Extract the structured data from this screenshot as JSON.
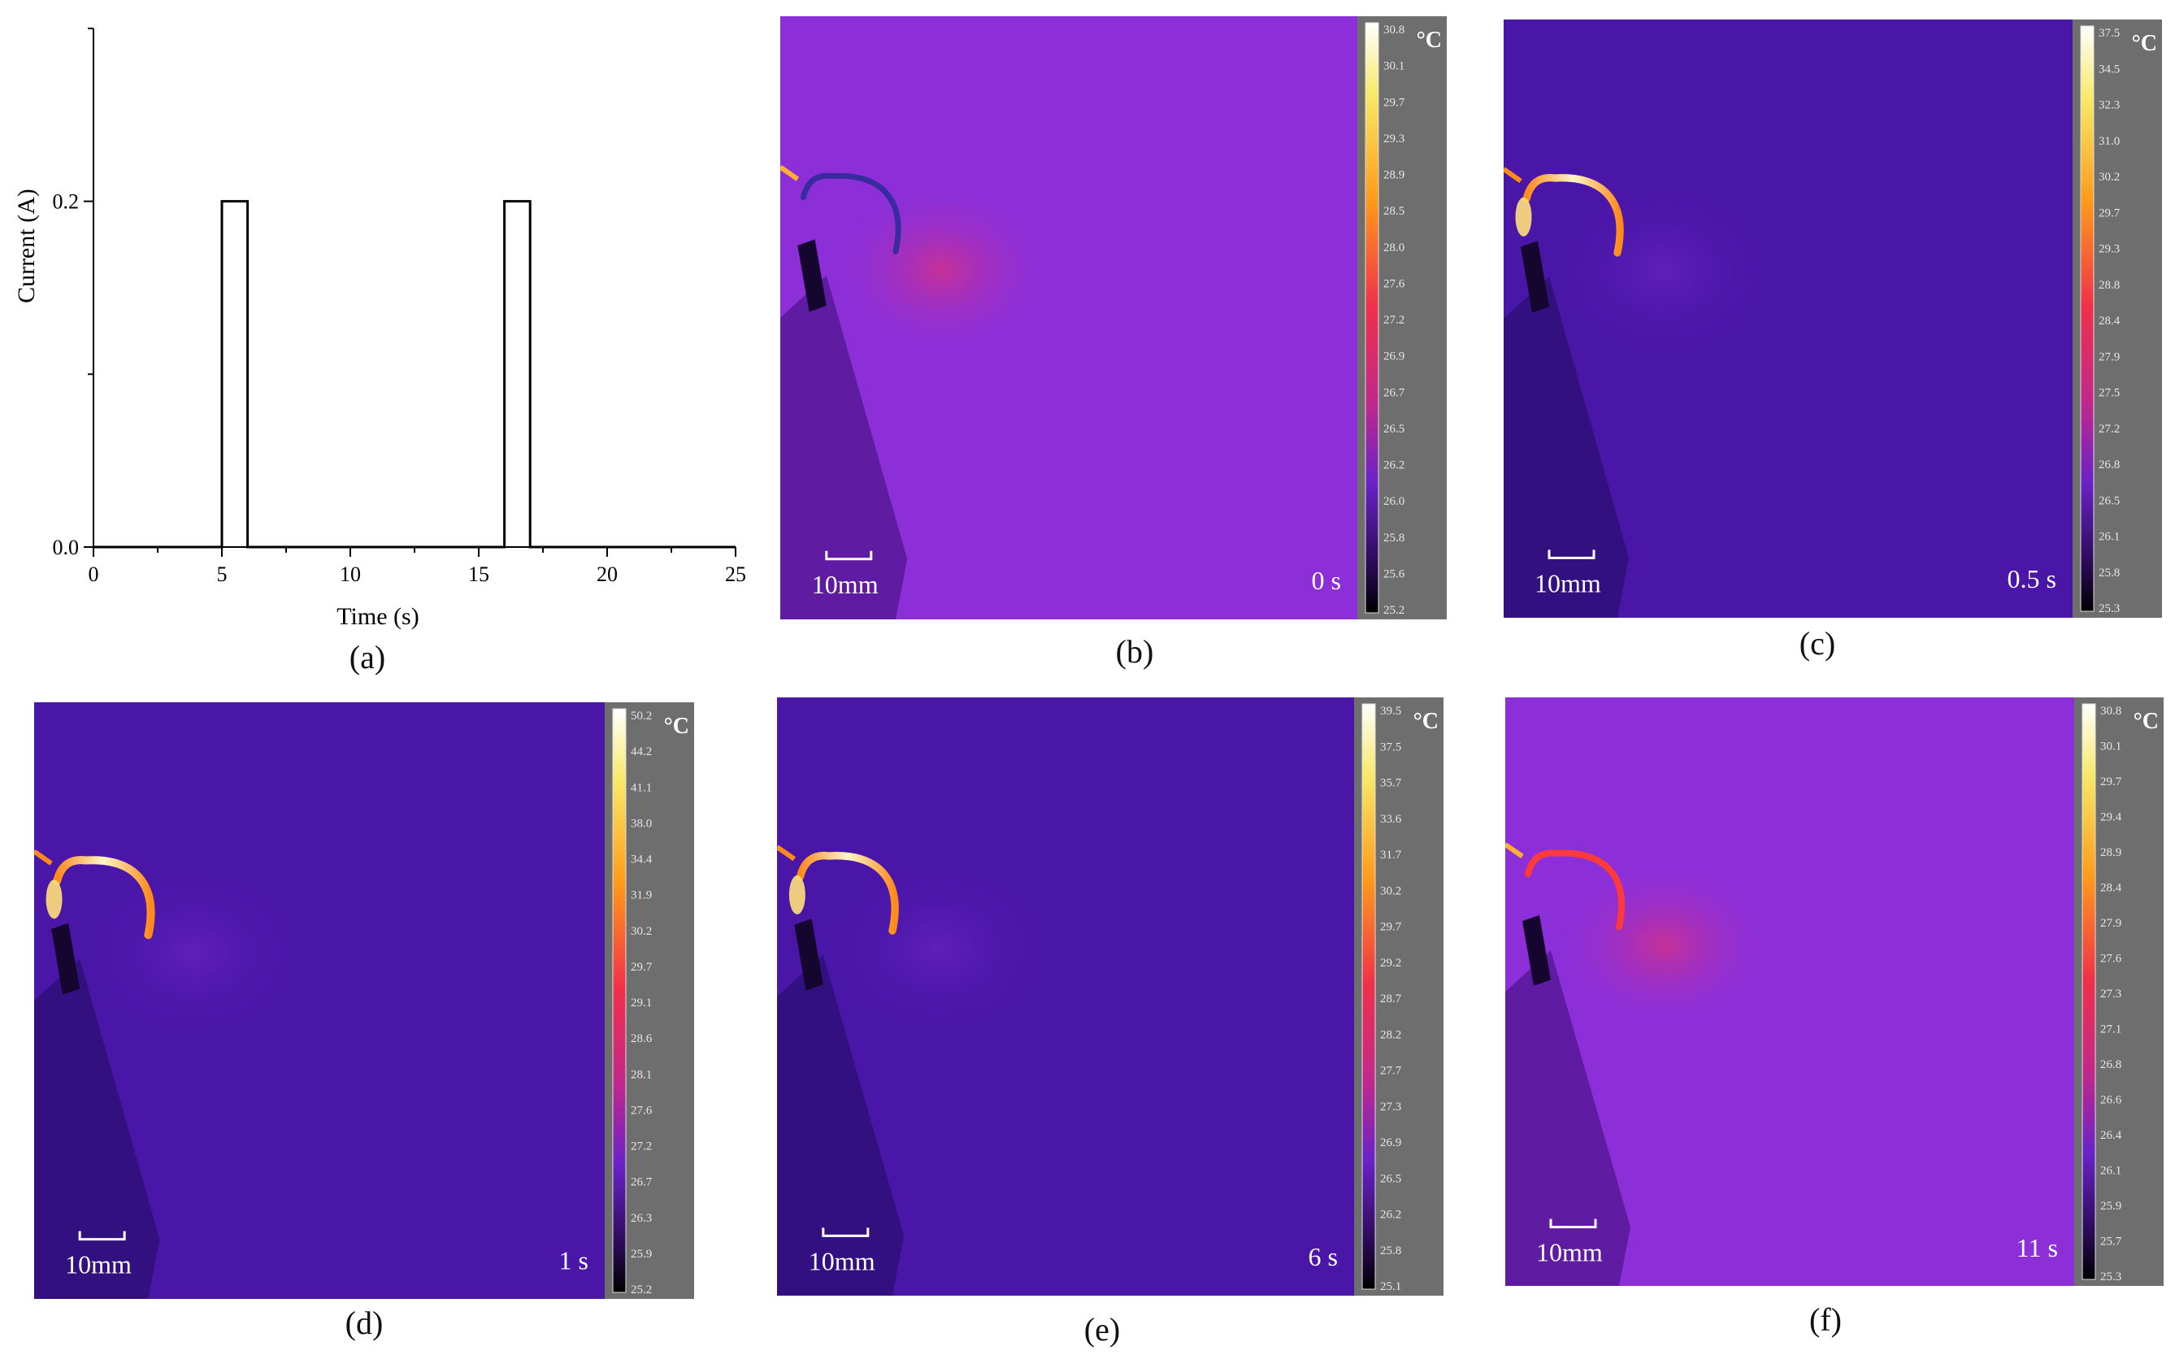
{
  "colors": {
    "thermal_warm": "#8c2fd9",
    "thermal_cool": "#4a16a8",
    "hot_white": "#fff6c8",
    "hot_orange": "#ff8a1a",
    "colorbar_bg": "#6e6e6e"
  },
  "chart_data": {
    "type": "line",
    "title": "",
    "xlabel": "Time (s)",
    "ylabel": "Current (A)",
    "xlim": [
      0,
      25
    ],
    "ylim": [
      0,
      0.3
    ],
    "x_ticks": [
      "0",
      "5",
      "10",
      "15",
      "20",
      "25"
    ],
    "y_ticks": [
      "0.0",
      "0.2"
    ],
    "grid": false,
    "series": [
      {
        "x": [
          0,
          5,
          5,
          6,
          6,
          16,
          16,
          17,
          17,
          25
        ],
        "values": [
          0,
          0,
          0.2,
          0.2,
          0,
          0,
          0.2,
          0.2,
          0,
          0
        ]
      }
    ]
  },
  "panels": {
    "a": {
      "caption": "(a)"
    },
    "b": {
      "caption": "(b)",
      "time": "0 s",
      "scale": "10mm",
      "unit": "°C",
      "ticks": [
        "30.8",
        "30.1",
        "29.7",
        "29.3",
        "28.9",
        "28.5",
        "28.0",
        "27.6",
        "27.2",
        "26.9",
        "26.7",
        "26.5",
        "26.2",
        "26.0",
        "25.8",
        "25.6",
        "25.2"
      ],
      "heat": 0.25,
      "base": "warm"
    },
    "c": {
      "caption": "(c)",
      "time": "0.5 s",
      "scale": "10mm",
      "unit": "°C",
      "ticks": [
        "37.5",
        "34.5",
        "32.3",
        "31.0",
        "30.2",
        "29.7",
        "29.3",
        "28.8",
        "28.4",
        "27.9",
        "27.5",
        "27.2",
        "26.8",
        "26.5",
        "26.1",
        "25.8",
        "25.3"
      ],
      "heat": 0.8,
      "base": "cool"
    },
    "d": {
      "caption": "(d)",
      "time": "1 s",
      "scale": "10mm",
      "unit": "°C",
      "ticks": [
        "50.2",
        "44.2",
        "41.1",
        "38.0",
        "34.4",
        "31.9",
        "30.2",
        "29.7",
        "29.1",
        "28.6",
        "28.1",
        "27.6",
        "27.2",
        "26.7",
        "26.3",
        "25.9",
        "25.2"
      ],
      "heat": 1.0,
      "base": "cool"
    },
    "e": {
      "caption": "(e)",
      "time": "6 s",
      "scale": "10mm",
      "unit": "°C",
      "ticks": [
        "39.5",
        "37.5",
        "35.7",
        "33.6",
        "31.7",
        "30.2",
        "29.7",
        "29.2",
        "28.7",
        "28.2",
        "27.7",
        "27.3",
        "26.9",
        "26.5",
        "26.2",
        "25.8",
        "25.1"
      ],
      "heat": 0.85,
      "base": "cool"
    },
    "f": {
      "caption": "(f)",
      "time": "11 s",
      "scale": "10mm",
      "unit": "°C",
      "ticks": [
        "30.8",
        "30.1",
        "29.7",
        "29.4",
        "28.9",
        "28.4",
        "27.9",
        "27.6",
        "27.3",
        "27.1",
        "26.8",
        "26.6",
        "26.4",
        "26.1",
        "25.9",
        "25.7",
        "25.3"
      ],
      "heat": 0.5,
      "base": "warm"
    }
  }
}
